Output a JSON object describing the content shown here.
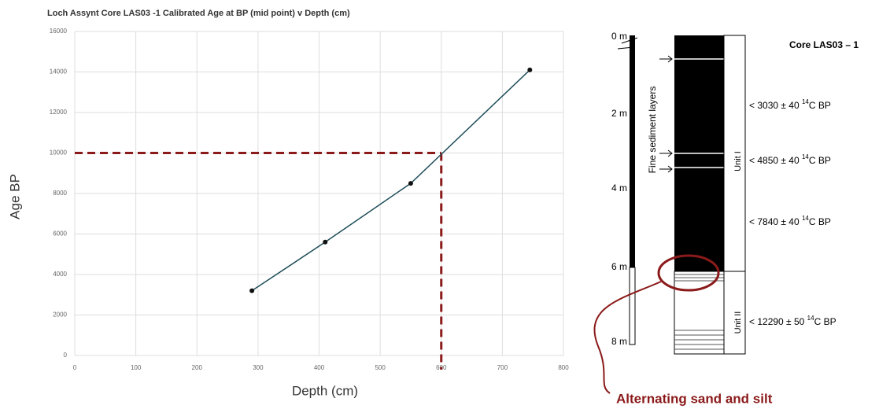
{
  "chart_data": {
    "type": "line",
    "title": "Loch Assynt Core LAS03 -1 Calibrated Age at BP (mid point) v Depth  (cm)",
    "x_label": "Depth (cm)",
    "y_label": "Age BP",
    "x": [
      290,
      410,
      550,
      745
    ],
    "series": [
      {
        "color": "#1f4e5a",
        "values": [
          3200,
          5600,
          8500,
          14100
        ]
      }
    ],
    "xlim": [
      0,
      800
    ],
    "xticks": [
      0,
      100,
      200,
      300,
      400,
      500,
      600,
      700,
      800
    ],
    "ylim": [
      0,
      16000
    ],
    "yticks": [
      0,
      2000,
      4000,
      6000,
      8000,
      10000,
      12000,
      14000,
      16000
    ],
    "grid": true,
    "reference_lines": {
      "x": 600,
      "y": 10000,
      "color": "#8b1a1a"
    }
  },
  "core_diagram": {
    "title": "Core LAS03 – 1",
    "depth_labels": [
      "0 m",
      "2 m",
      "4 m",
      "6 m",
      "8 m"
    ],
    "side_label": "Fine sediment layers",
    "units": [
      "Unit I",
      "Unit II"
    ],
    "dates": [
      {
        "text": "< 3030 ± 40 ",
        "sup": "14",
        "suffix": "C BP"
      },
      {
        "text": "< 4850 ± 40 ",
        "sup": "14",
        "suffix": "C BP"
      },
      {
        "text": "< 7840 ± 40 ",
        "sup": "14",
        "suffix": "C BP"
      },
      {
        "text": "< 12290 ± 50 ",
        "sup": "14",
        "suffix": "C BP"
      }
    ],
    "annotation": "Alternating sand and silt"
  }
}
